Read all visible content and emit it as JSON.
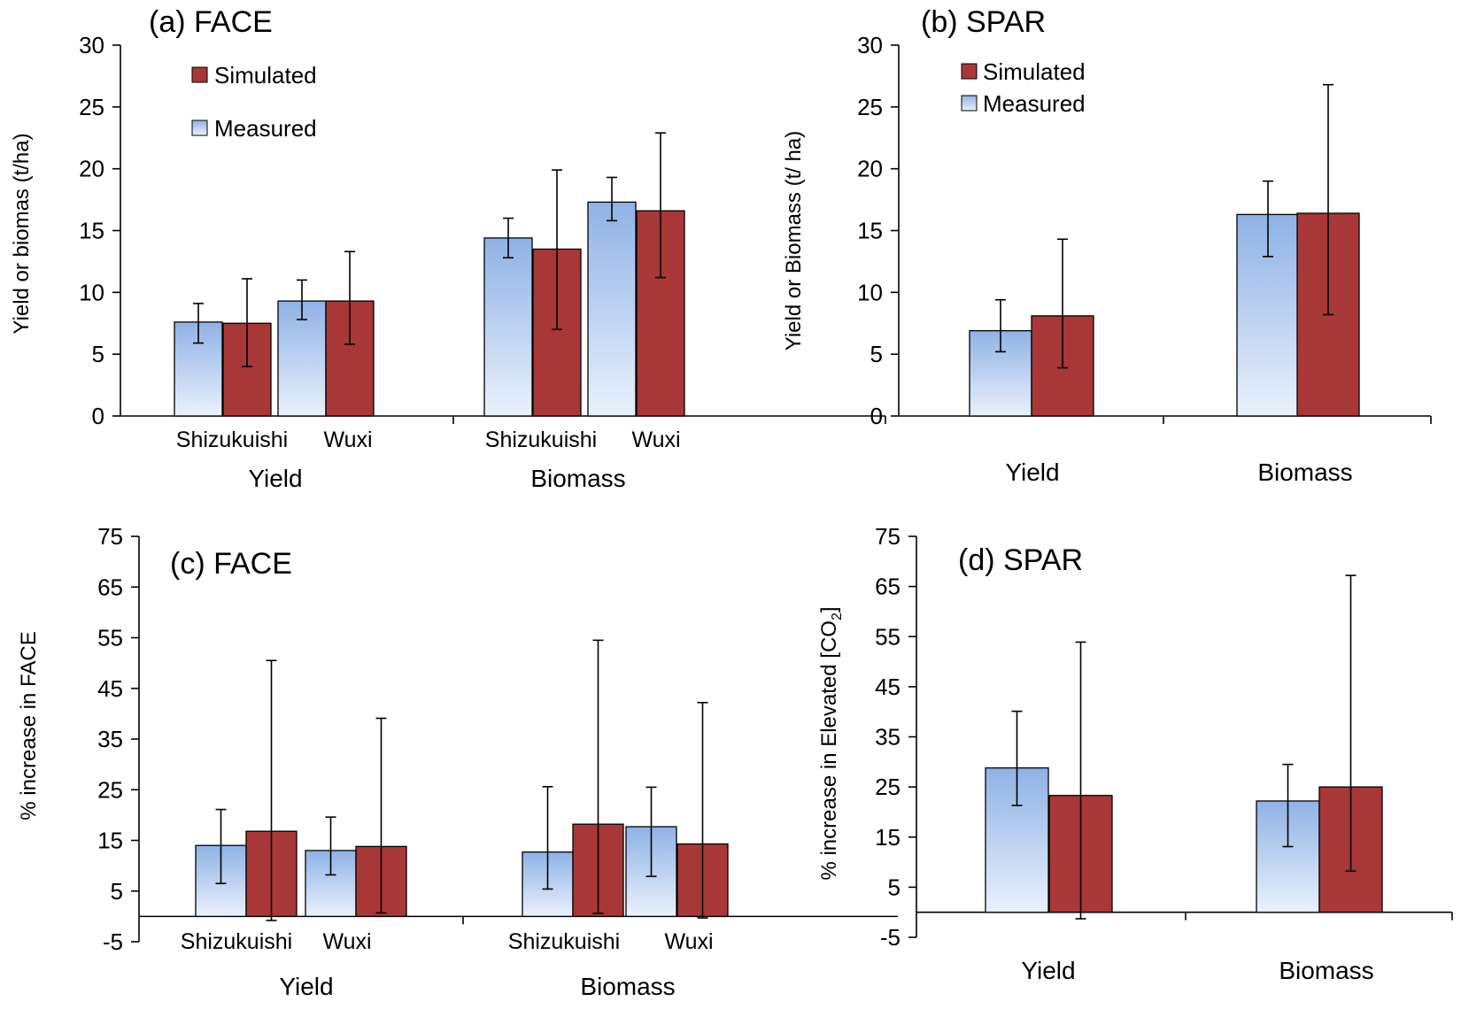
{
  "chart_data": [
    {
      "type": "bar",
      "title": "(a) FACE",
      "ylabel": "Yield or biomas (t/ha)",
      "ylim": [
        0,
        30
      ],
      "ticks": [
        0,
        5,
        10,
        15,
        20,
        25,
        30
      ],
      "tick_labels": [
        "0",
        "5",
        "10",
        "15",
        "20",
        "25",
        "30"
      ],
      "groups": [
        {
          "label": "Yield",
          "categories": [
            "Shizukuishi",
            "Wuxi"
          ]
        },
        {
          "label": "Biomass",
          "categories": [
            "Shizukuishi",
            "Wuxi"
          ]
        }
      ],
      "legend": [
        "Simulated",
        "Measured"
      ],
      "series": [
        {
          "name": "Measured",
          "values": [
            7.6,
            9.3,
            14.4,
            17.3
          ],
          "err_low": [
            5.9,
            7.8,
            12.8,
            15.8
          ],
          "err_high": [
            9.1,
            11.0,
            16.0,
            19.3
          ]
        },
        {
          "name": "Simulated",
          "values": [
            7.5,
            9.3,
            13.5,
            16.6
          ],
          "err_low": [
            4.0,
            5.8,
            7.0,
            11.2
          ],
          "err_high": [
            11.1,
            13.3,
            19.9,
            22.9
          ]
        }
      ]
    },
    {
      "type": "bar",
      "title": "(b) SPAR",
      "ylabel": "Yield or Biomass (t/ ha)",
      "ylim": [
        0,
        30
      ],
      "ticks": [
        0,
        5,
        10,
        15,
        20,
        25,
        30
      ],
      "tick_labels": [
        "0",
        "5",
        "10",
        "15",
        "20",
        "25",
        "30"
      ],
      "categories": [
        "Yield",
        "Biomass"
      ],
      "legend": [
        "Simulated",
        "Measured"
      ],
      "series": [
        {
          "name": "Measured",
          "values": [
            6.9,
            16.3
          ],
          "err_low": [
            5.2,
            12.9
          ],
          "err_high": [
            9.4,
            19.0
          ]
        },
        {
          "name": "Simulated",
          "values": [
            8.1,
            16.4
          ],
          "err_low": [
            3.9,
            8.2
          ],
          "err_high": [
            14.3,
            26.8
          ]
        }
      ]
    },
    {
      "type": "bar",
      "title": "(c) FACE",
      "ylabel": "% increase in FACE",
      "ylim": [
        -5,
        75
      ],
      "ticks": [
        -5,
        5,
        15,
        25,
        35,
        45,
        55,
        65,
        75
      ],
      "tick_labels": [
        "-5",
        "5",
        "15",
        "25",
        "35",
        "45",
        "55",
        "65",
        "75"
      ],
      "groups": [
        {
          "label": "Yield",
          "categories": [
            "Shizukuishi",
            "Wuxi"
          ]
        },
        {
          "label": "Biomass",
          "categories": [
            "Shizukuishi",
            "Wuxi"
          ]
        }
      ],
      "series": [
        {
          "name": "Measured",
          "values": [
            14.0,
            13.0,
            12.7,
            17.7
          ],
          "err_low": [
            6.5,
            8.2,
            5.4,
            7.9
          ],
          "err_high": [
            21.1,
            19.6,
            25.6,
            25.5
          ]
        },
        {
          "name": "Simulated",
          "values": [
            16.8,
            13.8,
            18.2,
            14.3
          ],
          "err_low": [
            -0.8,
            0.7,
            0.6,
            -0.3
          ],
          "err_high": [
            50.5,
            39.1,
            54.5,
            42.2
          ]
        }
      ]
    },
    {
      "type": "bar",
      "title": "(d) SPAR",
      "ylabel": "% increase in Elevated [CO",
      "ylabel_sub": "2",
      "ylabel_end": "]",
      "ylim": [
        -5,
        75
      ],
      "ticks": [
        -5,
        5,
        15,
        25,
        35,
        45,
        55,
        65,
        75
      ],
      "tick_labels": [
        "-5",
        "5",
        "15",
        "25",
        "35",
        "45",
        "55",
        "65",
        "75"
      ],
      "categories": [
        "Yield",
        "Biomass"
      ],
      "series": [
        {
          "name": "Measured",
          "values": [
            28.8,
            22.2
          ],
          "err_low": [
            21.3,
            13.1
          ],
          "err_high": [
            40.1,
            29.5
          ]
        },
        {
          "name": "Simulated",
          "values": [
            23.3,
            25.0
          ],
          "err_low": [
            -1.3,
            8.2
          ],
          "err_high": [
            53.9,
            67.2
          ]
        }
      ]
    }
  ],
  "colors": {
    "measured_top": "#8fb2e6",
    "measured_bottom": "#e8f0fc",
    "simulated": "#a83838",
    "axis": "#000000"
  }
}
